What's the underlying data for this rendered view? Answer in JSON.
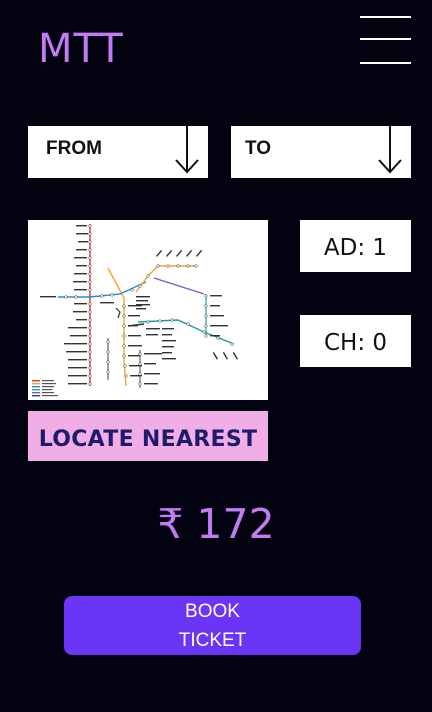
{
  "header": {
    "title": "MTT",
    "menu_icon": "hamburger-menu-icon"
  },
  "route": {
    "from_label": "FROM",
    "to_label": "TO",
    "dropdown_icon": "arrow-down-icon"
  },
  "map": {
    "icon": "metro-route-map",
    "line_colors": [
      "#e4322b",
      "#f5a623",
      "#2b8ad6",
      "#1aa0a0",
      "#7a5cc4",
      "#444444"
    ]
  },
  "passengers": {
    "adult_text": "AD: 1",
    "child_text": "CH: 0"
  },
  "actions": {
    "locate_label": "LOCATE NEAREST",
    "book_line1": "BOOK",
    "book_line2": "TICKET"
  },
  "fare": {
    "display": "₹ 172"
  },
  "colors": {
    "background": "#020210",
    "accent_purple": "#c27bf0",
    "locate_pink": "#f1aee6",
    "book_violet": "#6a35f5"
  }
}
